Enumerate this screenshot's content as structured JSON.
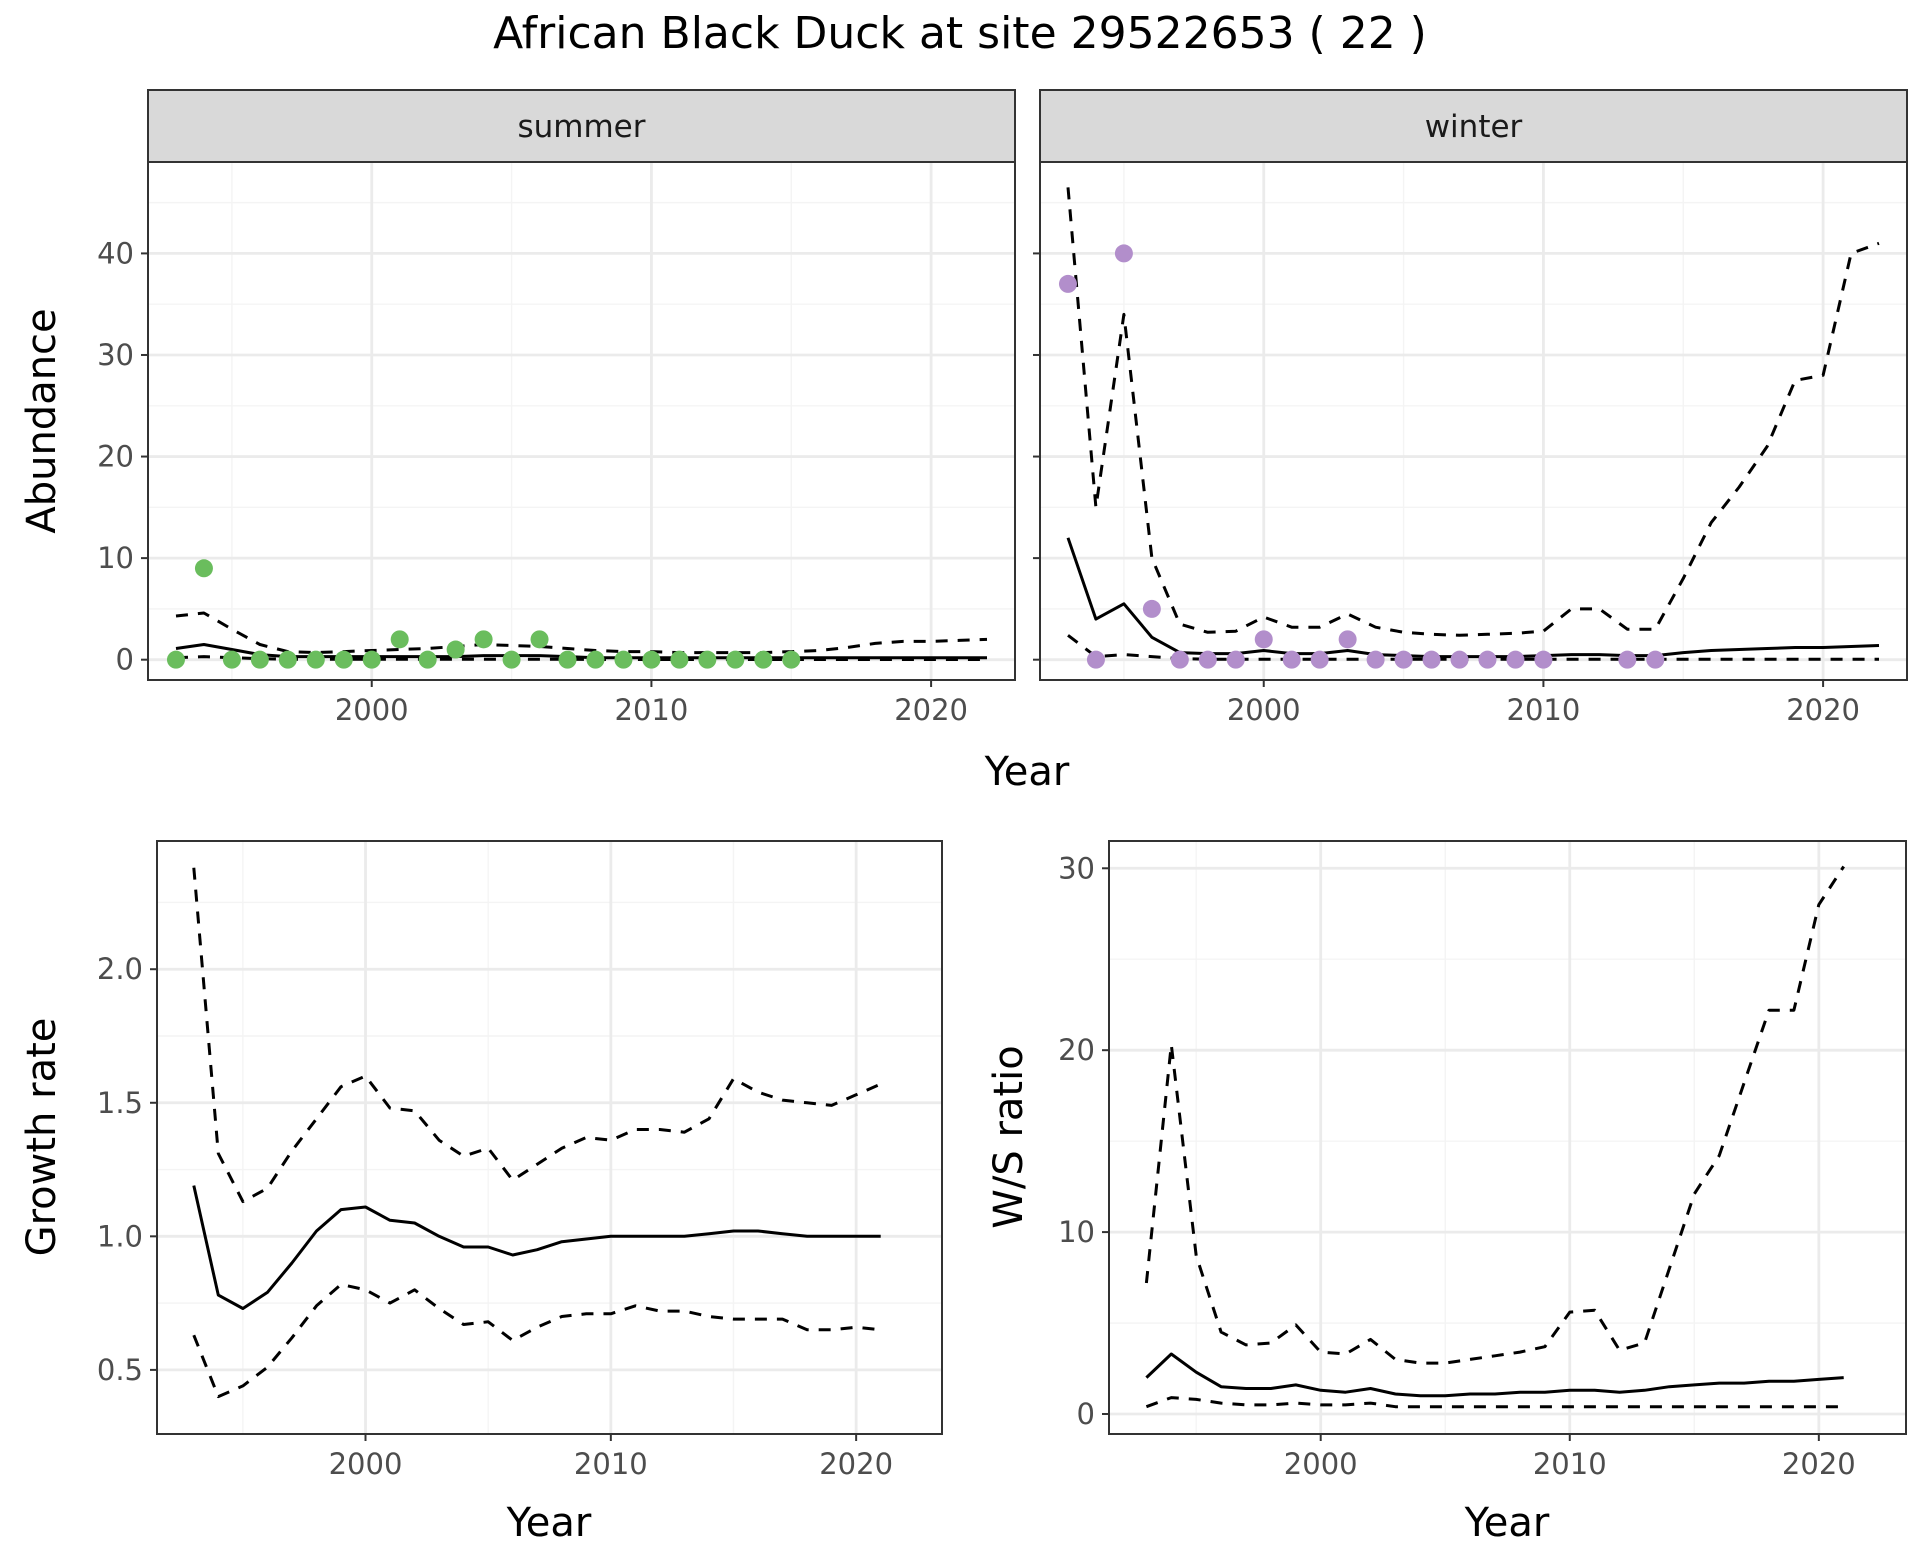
{
  "figure_title": "African Black Duck at site 29522653 ( 22 )",
  "colors": {
    "summer_points": "#6abd5d",
    "winter_points": "#b28ecb",
    "line": "#000000",
    "grid_major": "#ebebeb",
    "grid_minor": "#f4f4f4",
    "strip_fill": "#d9d9d9"
  },
  "chart_data": [
    {
      "type": "line",
      "panel": "summer",
      "strip_label": "summer",
      "xlabel": "Year",
      "ylabel": "Abundance",
      "xlim": [
        1992,
        2023
      ],
      "ylim": [
        -2,
        49
      ],
      "xticks": [
        2000,
        2010,
        2020
      ],
      "yticks": [
        0,
        10,
        20,
        30,
        40
      ],
      "points": {
        "x": [
          1993,
          1994,
          1995,
          1996,
          1997,
          1998,
          1999,
          2000,
          2001,
          2002,
          2003,
          2004,
          2005,
          2006,
          2007,
          2008,
          2009,
          2010,
          2011,
          2012,
          2013,
          2014,
          2015
        ],
        "y": [
          0,
          9,
          0,
          0,
          0,
          0,
          0,
          0,
          2,
          0,
          1,
          2,
          0,
          2,
          0,
          0,
          0,
          0,
          0,
          0,
          0,
          0,
          0
        ]
      },
      "series": [
        {
          "style": "solid",
          "x": [
            1993,
            1994,
            1995,
            1996,
            1997,
            1998,
            1999,
            2000,
            2001,
            2002,
            2003,
            2004,
            2005,
            2006,
            2007,
            2008,
            2009,
            2010,
            2011,
            2012,
            2013,
            2014,
            2015,
            2016,
            2017,
            2018,
            2019,
            2020,
            2021,
            2022
          ],
          "y": [
            1.1,
            1.5,
            1.0,
            0.5,
            0.3,
            0.3,
            0.3,
            0.3,
            0.3,
            0.3,
            0.3,
            0.4,
            0.4,
            0.4,
            0.3,
            0.2,
            0.2,
            0.2,
            0.2,
            0.2,
            0.2,
            0.2,
            0.2,
            0.2,
            0.2,
            0.2,
            0.2,
            0.2,
            0.2,
            0.2
          ]
        },
        {
          "style": "dashed",
          "x": [
            1993,
            1994,
            1995,
            1996,
            1997,
            1998,
            1999,
            2000,
            2001,
            2002,
            2003,
            2004,
            2005,
            2006,
            2007,
            2008,
            2009,
            2010,
            2011,
            2012,
            2013,
            2014,
            2015,
            2016,
            2017,
            2018,
            2019,
            2020,
            2021,
            2022
          ],
          "y": [
            4.3,
            4.6,
            3.0,
            1.5,
            0.8,
            0.7,
            0.8,
            0.9,
            1.0,
            1.1,
            1.3,
            1.5,
            1.4,
            1.3,
            1.1,
            0.9,
            0.8,
            0.8,
            0.7,
            0.7,
            0.7,
            0.7,
            0.8,
            0.9,
            1.2,
            1.6,
            1.8,
            1.8,
            1.9,
            2.0
          ]
        },
        {
          "style": "dashed",
          "x": [
            1993,
            1994,
            1995,
            1996,
            1997,
            1998,
            1999,
            2000,
            2001,
            2002,
            2003,
            2004,
            2005,
            2006,
            2007,
            2008,
            2009,
            2010,
            2011,
            2012,
            2013,
            2014,
            2015,
            2016,
            2017,
            2018,
            2019,
            2020,
            2021,
            2022
          ],
          "y": [
            0.2,
            0.3,
            0.2,
            0.1,
            0.05,
            0.05,
            0.05,
            0.05,
            0.05,
            0.05,
            0.05,
            0.05,
            0.05,
            0.05,
            0.05,
            0.02,
            0.02,
            0.02,
            0.02,
            0.02,
            0.02,
            0.02,
            0.02,
            0.02,
            0.02,
            0.02,
            0.02,
            0.02,
            0.02,
            0.02
          ]
        }
      ]
    },
    {
      "type": "line",
      "panel": "winter",
      "strip_label": "winter",
      "xlabel": "Year",
      "ylabel": "Abundance",
      "xlim": [
        1992,
        2023
      ],
      "ylim": [
        -2,
        49
      ],
      "xticks": [
        2000,
        2010,
        2020
      ],
      "yticks": [
        0,
        10,
        20,
        30,
        40
      ],
      "points": {
        "x": [
          1993,
          1994,
          1995,
          1996,
          1997,
          1998,
          1999,
          2000,
          2001,
          2002,
          2003,
          2004,
          2005,
          2006,
          2007,
          2008,
          2009,
          2010,
          2013,
          2014
        ],
        "y": [
          37,
          0,
          40,
          5,
          0,
          0,
          0,
          2,
          0,
          0,
          2,
          0,
          0,
          0,
          0,
          0,
          0,
          0,
          0,
          0
        ]
      },
      "series": [
        {
          "style": "solid",
          "x": [
            1993,
            1994,
            1995,
            1996,
            1997,
            1998,
            1999,
            2000,
            2001,
            2002,
            2003,
            2004,
            2005,
            2006,
            2007,
            2008,
            2009,
            2010,
            2011,
            2012,
            2013,
            2014,
            2015,
            2016,
            2017,
            2018,
            2019,
            2020,
            2021,
            2022
          ],
          "y": [
            12,
            4,
            5.5,
            2.2,
            0.7,
            0.6,
            0.6,
            0.9,
            0.6,
            0.6,
            0.9,
            0.5,
            0.4,
            0.3,
            0.3,
            0.3,
            0.3,
            0.4,
            0.5,
            0.5,
            0.4,
            0.4,
            0.7,
            0.9,
            1.0,
            1.1,
            1.2,
            1.2,
            1.3,
            1.4
          ]
        },
        {
          "style": "dashed",
          "x": [
            1993,
            1994,
            1995,
            1996,
            1997,
            1998,
            1999,
            2000,
            2001,
            2002,
            2003,
            2004,
            2005,
            2006,
            2007,
            2008,
            2009,
            2010,
            2011,
            2012,
            2013,
            2014,
            2015,
            2016,
            2017,
            2018,
            2019,
            2020,
            2021,
            2022
          ],
          "y": [
            46.5,
            15,
            34,
            10,
            3.5,
            2.7,
            2.8,
            4.2,
            3.2,
            3.2,
            4.5,
            3.2,
            2.7,
            2.5,
            2.4,
            2.5,
            2.6,
            2.8,
            5,
            5,
            3,
            3,
            8,
            13.5,
            17,
            21,
            27.5,
            28,
            40,
            41
          ]
        },
        {
          "style": "dashed",
          "x": [
            1993,
            1994,
            1995,
            1996,
            1997,
            1998,
            1999,
            2000,
            2001,
            2002,
            2003,
            2004,
            2005,
            2006,
            2007,
            2008,
            2009,
            2010,
            2011,
            2012,
            2013,
            2014,
            2015,
            2016,
            2017,
            2018,
            2019,
            2020,
            2021,
            2022
          ],
          "y": [
            2.4,
            0.3,
            0.5,
            0.3,
            0.1,
            0.05,
            0.05,
            0.05,
            0.05,
            0.05,
            0.05,
            0.05,
            0.05,
            0.05,
            0.05,
            0.05,
            0.05,
            0.05,
            0.05,
            0.05,
            0.05,
            0.05,
            0.05,
            0.05,
            0.05,
            0.05,
            0.05,
            0.05,
            0.05,
            0.05
          ]
        }
      ]
    },
    {
      "type": "line",
      "panel": "growth",
      "xlabel": "Year",
      "ylabel": "Growth rate",
      "xlim": [
        1991.5,
        2023.5
      ],
      "ylim": [
        0.26,
        2.48
      ],
      "xticks": [
        2000,
        2010,
        2020
      ],
      "yticks": [
        0.5,
        1.0,
        1.5,
        2.0
      ],
      "ytick_labels": [
        "0.5",
        "1.0",
        "1.5",
        "2.0"
      ],
      "series": [
        {
          "style": "solid",
          "x": [
            1993,
            1994,
            1995,
            1996,
            1997,
            1998,
            1999,
            2000,
            2001,
            2002,
            2003,
            2004,
            2005,
            2006,
            2007,
            2008,
            2009,
            2010,
            2011,
            2012,
            2013,
            2014,
            2015,
            2016,
            2017,
            2018,
            2019,
            2020,
            2021
          ],
          "y": [
            1.19,
            0.78,
            0.73,
            0.79,
            0.9,
            1.02,
            1.1,
            1.11,
            1.06,
            1.05,
            1.0,
            0.96,
            0.96,
            0.93,
            0.95,
            0.98,
            0.99,
            1.0,
            1.0,
            1.0,
            1.0,
            1.01,
            1.02,
            1.02,
            1.01,
            1.0,
            1.0,
            1.0,
            1.0
          ]
        },
        {
          "style": "dashed",
          "x": [
            1993,
            1994,
            1995,
            1996,
            1997,
            1998,
            1999,
            2000,
            2001,
            2002,
            2003,
            2004,
            2005,
            2006,
            2007,
            2008,
            2009,
            2010,
            2011,
            2012,
            2013,
            2014,
            2015,
            2016,
            2017,
            2018,
            2019,
            2020,
            2021
          ],
          "y": [
            2.38,
            1.31,
            1.13,
            1.18,
            1.32,
            1.44,
            1.56,
            1.6,
            1.48,
            1.47,
            1.36,
            1.3,
            1.33,
            1.21,
            1.27,
            1.33,
            1.37,
            1.36,
            1.4,
            1.4,
            1.39,
            1.44,
            1.59,
            1.54,
            1.51,
            1.5,
            1.49,
            1.53,
            1.57
          ]
        },
        {
          "style": "dashed",
          "x": [
            1993,
            1994,
            1995,
            1996,
            1997,
            1998,
            1999,
            2000,
            2001,
            2002,
            2003,
            2004,
            2005,
            2006,
            2007,
            2008,
            2009,
            2010,
            2011,
            2012,
            2013,
            2014,
            2015,
            2016,
            2017,
            2018,
            2019,
            2020,
            2021
          ],
          "y": [
            0.63,
            0.4,
            0.44,
            0.51,
            0.62,
            0.74,
            0.82,
            0.8,
            0.75,
            0.8,
            0.73,
            0.67,
            0.68,
            0.61,
            0.66,
            0.7,
            0.71,
            0.71,
            0.74,
            0.72,
            0.72,
            0.7,
            0.69,
            0.69,
            0.69,
            0.65,
            0.65,
            0.66,
            0.65
          ]
        }
      ]
    },
    {
      "type": "line",
      "panel": "ratio",
      "xlabel": "Year",
      "ylabel": "W/S ratio",
      "xlim": [
        1991.5,
        2023.5
      ],
      "ylim": [
        -1.1,
        31.5
      ],
      "xticks": [
        2000,
        2010,
        2020
      ],
      "yticks": [
        0,
        10,
        20,
        30
      ],
      "ytick_labels": [
        "0",
        "10",
        "20",
        "30"
      ],
      "series": [
        {
          "style": "solid",
          "x": [
            1993,
            1994,
            1995,
            1996,
            1997,
            1998,
            1999,
            2000,
            2001,
            2002,
            2003,
            2004,
            2005,
            2006,
            2007,
            2008,
            2009,
            2010,
            2011,
            2012,
            2013,
            2014,
            2015,
            2016,
            2017,
            2018,
            2019,
            2020,
            2021
          ],
          "y": [
            2.0,
            3.3,
            2.3,
            1.5,
            1.4,
            1.4,
            1.6,
            1.3,
            1.2,
            1.4,
            1.1,
            1.0,
            1.0,
            1.1,
            1.1,
            1.2,
            1.2,
            1.3,
            1.3,
            1.2,
            1.3,
            1.5,
            1.6,
            1.7,
            1.7,
            1.8,
            1.8,
            1.9,
            2.0
          ]
        },
        {
          "style": "dashed",
          "x": [
            1993,
            1994,
            1995,
            1996,
            1997,
            1998,
            1999,
            2000,
            2001,
            2002,
            2003,
            2004,
            2005,
            2006,
            2007,
            2008,
            2009,
            2010,
            2011,
            2012,
            2013,
            2014,
            2015,
            2016,
            2017,
            2018,
            2019,
            2020,
            2021
          ],
          "y": [
            7.2,
            20.3,
            8.7,
            4.5,
            3.8,
            3.9,
            4.9,
            3.4,
            3.3,
            4.1,
            3.0,
            2.8,
            2.8,
            3.0,
            3.2,
            3.4,
            3.7,
            5.6,
            5.7,
            3.5,
            3.9,
            8.0,
            12.1,
            14.2,
            18.2,
            22.2,
            22.2,
            28.0,
            30.1
          ]
        },
        {
          "style": "dashed",
          "x": [
            1993,
            1994,
            1995,
            1996,
            1997,
            1998,
            1999,
            2000,
            2001,
            2002,
            2003,
            2004,
            2005,
            2006,
            2007,
            2008,
            2009,
            2010,
            2011,
            2012,
            2013,
            2014,
            2015,
            2016,
            2017,
            2018,
            2019,
            2020,
            2021
          ],
          "y": [
            0.4,
            0.9,
            0.8,
            0.6,
            0.5,
            0.5,
            0.6,
            0.5,
            0.5,
            0.6,
            0.4,
            0.4,
            0.4,
            0.4,
            0.4,
            0.4,
            0.4,
            0.4,
            0.4,
            0.4,
            0.4,
            0.4,
            0.4,
            0.4,
            0.4,
            0.4,
            0.4,
            0.4,
            0.4
          ]
        }
      ]
    }
  ]
}
